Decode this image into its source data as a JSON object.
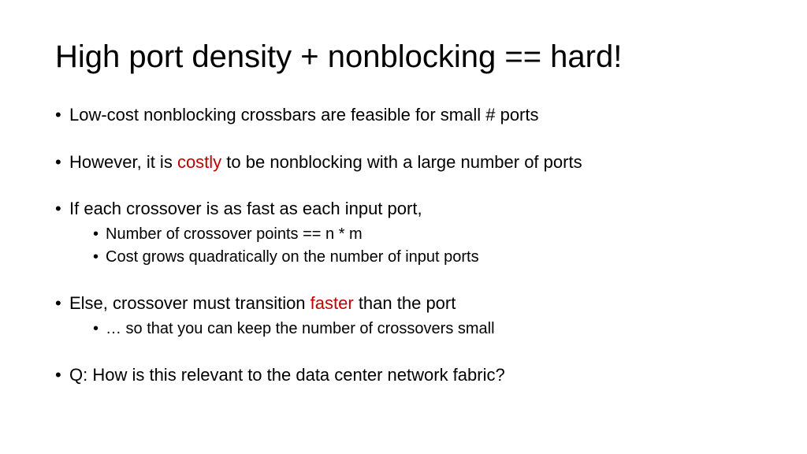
{
  "title": "High port density + nonblocking == hard!",
  "highlight_color": "#c00000",
  "text_color": "#000000",
  "background_color": "#ffffff",
  "title_fontsize": 40,
  "body_fontsize": 22,
  "sub_fontsize": 20,
  "bullets": {
    "b1": "Low-cost nonblocking crossbars are feasible for small # ports",
    "b2_pre": "However, it is ",
    "b2_hl": "costly",
    "b2_post": " to be nonblocking with a large number of ports",
    "b3": "If each crossover is as fast as each input port,",
    "b3_sub1": "Number of crossover points == n * m",
    "b3_sub2": "Cost grows quadratically on the number of input ports",
    "b4_pre": "Else, crossover must transition ",
    "b4_hl": "faster",
    "b4_post": " than the port",
    "b4_sub1": "… so that you can keep the number of crossovers small",
    "b5": "Q: How is this relevant to the data center network fabric?"
  }
}
